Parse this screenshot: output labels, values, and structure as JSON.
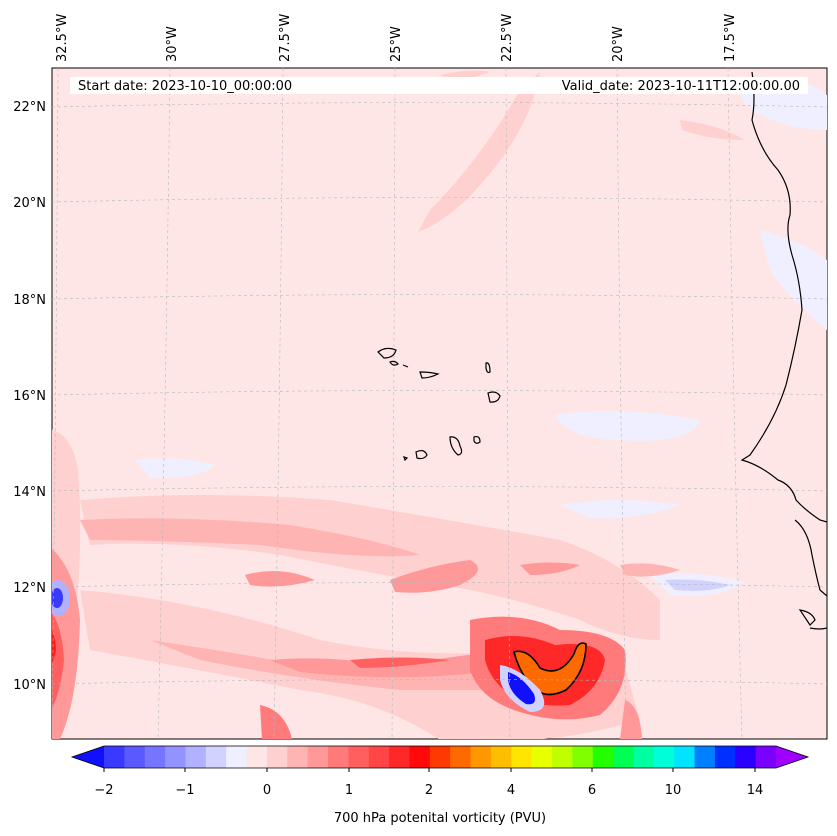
{
  "header": {
    "start_date": "Start date: 2023-10-10_00:00:00",
    "valid_date": "Valid_date: 2023-10-11T12:00:00.00"
  },
  "map": {
    "lon_labels": [
      "32.5°W",
      "30°W",
      "27.5°W",
      "25°W",
      "22.5°W",
      "20°W",
      "17.5°W"
    ],
    "lat_labels": [
      "22°N",
      "20°N",
      "18°N",
      "16°N",
      "14°N",
      "12°N",
      "10°N"
    ],
    "lon_range": [
      -32.5,
      -15.0
    ],
    "lat_range": [
      8.9,
      22.8
    ],
    "grid": true,
    "features": [
      "Cabo Verde islands",
      "West African coastline"
    ]
  },
  "colorbar": {
    "label": "700 hPa potenital vorticity (PVU)",
    "ticks": [
      "−2",
      "−1",
      "0",
      "1",
      "2",
      "4",
      "6",
      "10",
      "14"
    ],
    "colors": [
      "#1010ff",
      "#3a3aff",
      "#5959ff",
      "#7575ff",
      "#9393ff",
      "#b1b1ff",
      "#d2d2ff",
      "#efefff",
      "#ffe6e6",
      "#ffd0d0",
      "#ffb4b4",
      "#ff9898",
      "#ff7b7b",
      "#ff5f5f",
      "#ff4545",
      "#ff2828",
      "#ff0a0a",
      "#ff3a00",
      "#ff6a00",
      "#ff9800",
      "#ffbd00",
      "#ffe500",
      "#e8ff00",
      "#bfff00",
      "#7fff00",
      "#23ff00",
      "#00ff52",
      "#00ffa0",
      "#00ffd8",
      "#00e4ff",
      "#0080ff",
      "#0030ff",
      "#2a00ff",
      "#7a00ff",
      "#a000ff"
    ]
  }
}
